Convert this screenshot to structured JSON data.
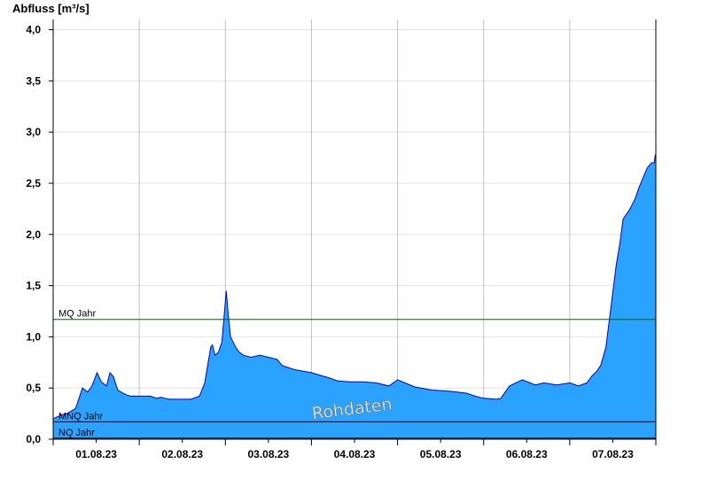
{
  "chart_data": {
    "type": "area",
    "ylabel": "Abfluss [m³/s]",
    "ylim": [
      0,
      4.1
    ],
    "yticks": [
      "0,0",
      "0,5",
      "1,0",
      "1,5",
      "2,0",
      "2,5",
      "3,0",
      "3,5",
      "4,0"
    ],
    "ytick_values": [
      0,
      0.5,
      1.0,
      1.5,
      2.0,
      2.5,
      3.0,
      3.5,
      4.0
    ],
    "xlim": [
      0,
      7
    ],
    "xticks": [
      "01.08.23",
      "02.08.23",
      "03.08.23",
      "04.08.23",
      "05.08.23",
      "06.08.23",
      "07.08.23"
    ],
    "grid": true,
    "fill_color": "#29a3ff",
    "line_color": "#0000cc",
    "reference_lines": [
      {
        "name": "MQ Jahr",
        "value": 1.17,
        "color": "#006400"
      },
      {
        "name": "MNQ Jahr",
        "value": 0.17,
        "color": "#000000"
      },
      {
        "name": "NQ Jahr",
        "value": 0.01,
        "color": "#000000"
      }
    ],
    "watermark": "Rohdaten",
    "x": [
      0,
      0.1,
      0.16,
      0.26,
      0.34,
      0.4,
      0.45,
      0.51,
      0.56,
      0.62,
      0.66,
      0.7,
      0.75,
      0.81,
      0.86,
      0.9,
      1.0,
      1.13,
      1.2,
      1.25,
      1.3,
      1.35,
      1.5,
      1.6,
      1.7,
      1.76,
      1.8,
      1.83,
      1.85,
      1.88,
      1.92,
      1.96,
      2.01,
      2.03,
      2.06,
      2.09,
      2.12,
      2.16,
      2.21,
      2.3,
      2.4,
      2.5,
      2.6,
      2.66,
      2.8,
      3.0,
      3.2,
      3.3,
      3.45,
      3.6,
      3.75,
      3.9,
      4.0,
      4.2,
      4.4,
      4.6,
      4.8,
      4.9,
      5.0,
      5.15,
      5.2,
      5.3,
      5.45,
      5.6,
      5.7,
      5.85,
      6.0,
      6.1,
      6.2,
      6.26,
      6.31,
      6.36,
      6.42,
      6.48,
      6.54,
      6.58,
      6.62,
      6.66,
      6.7,
      6.76,
      6.8,
      6.85,
      6.9,
      6.95,
      6.98,
      6.995
    ],
    "y": [
      0.2,
      0.24,
      0.25,
      0.3,
      0.5,
      0.46,
      0.52,
      0.65,
      0.56,
      0.52,
      0.65,
      0.61,
      0.48,
      0.45,
      0.43,
      0.42,
      0.42,
      0.42,
      0.4,
      0.41,
      0.4,
      0.39,
      0.39,
      0.39,
      0.42,
      0.55,
      0.75,
      0.9,
      0.92,
      0.82,
      0.85,
      0.95,
      1.45,
      1.25,
      1.0,
      0.95,
      0.9,
      0.85,
      0.82,
      0.8,
      0.82,
      0.8,
      0.78,
      0.72,
      0.68,
      0.65,
      0.6,
      0.57,
      0.56,
      0.56,
      0.55,
      0.52,
      0.58,
      0.51,
      0.48,
      0.47,
      0.45,
      0.42,
      0.4,
      0.39,
      0.4,
      0.52,
      0.58,
      0.53,
      0.55,
      0.53,
      0.55,
      0.52,
      0.55,
      0.62,
      0.66,
      0.72,
      0.9,
      1.3,
      1.7,
      1.9,
      2.15,
      2.2,
      2.25,
      2.35,
      2.45,
      2.55,
      2.65,
      2.7,
      2.7,
      2.78
    ]
  }
}
